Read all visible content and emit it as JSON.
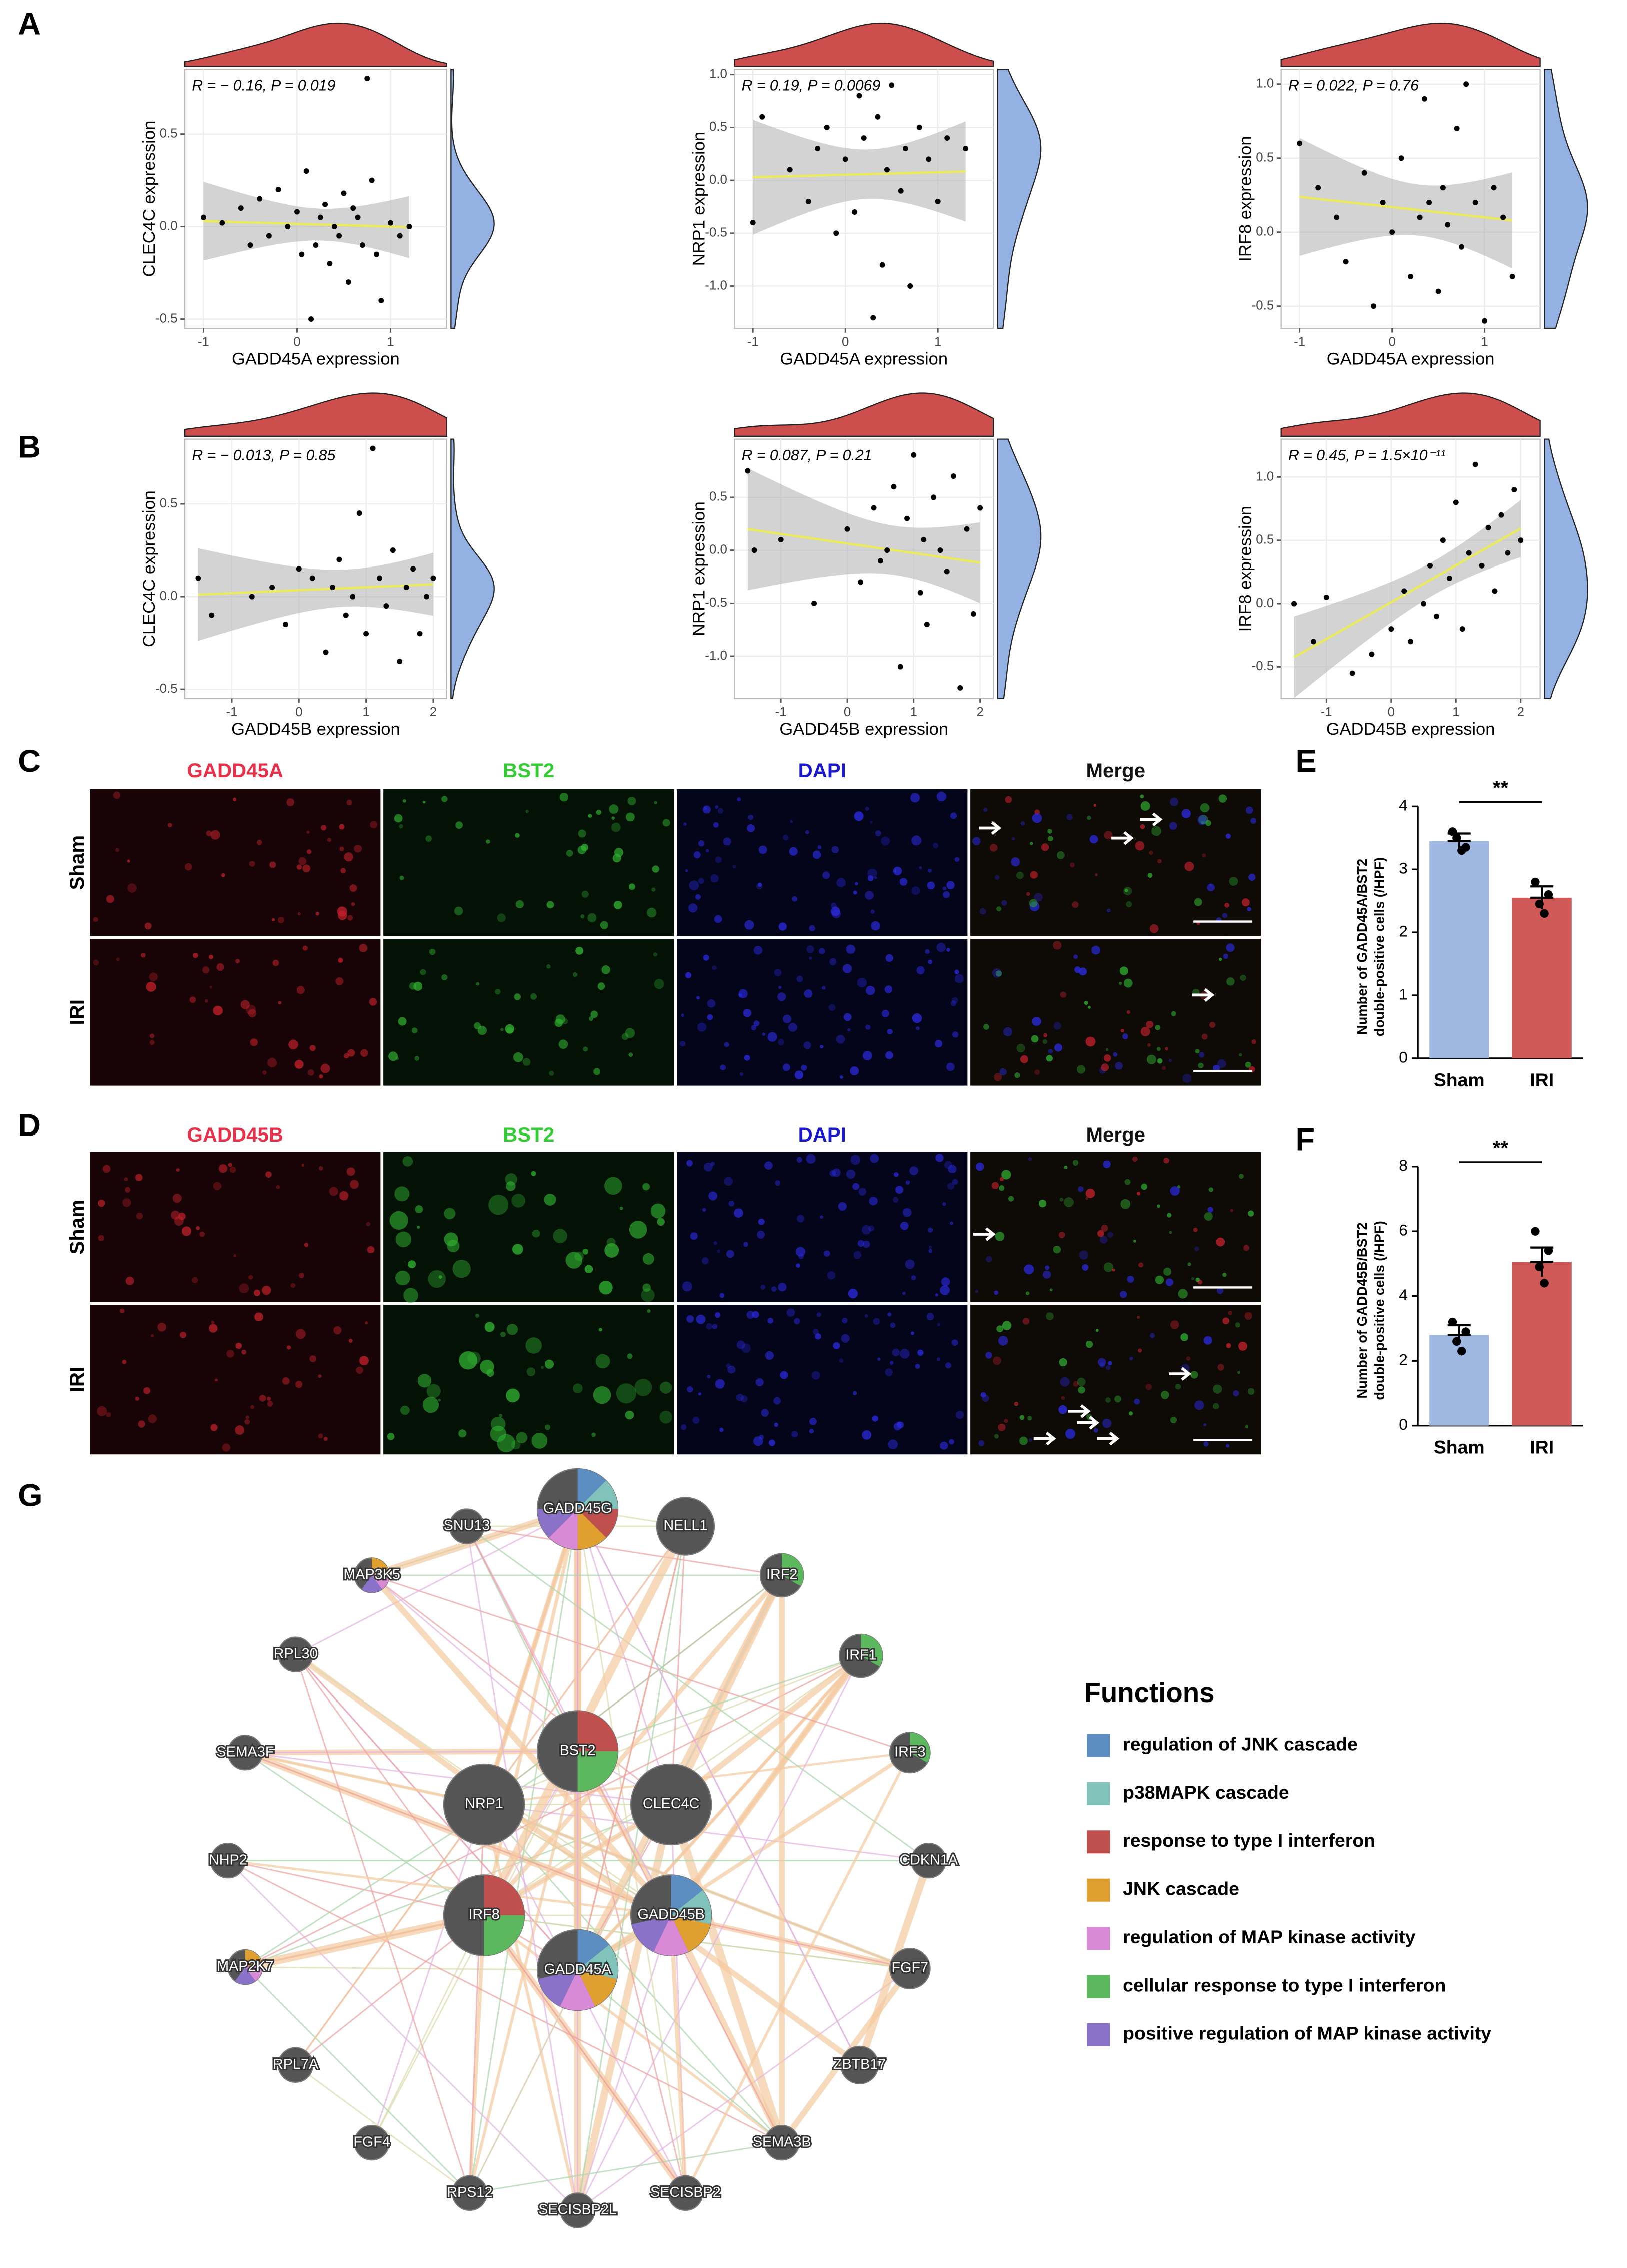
{
  "panel_labels": [
    "A",
    "B",
    "C",
    "D",
    "E",
    "F",
    "G"
  ],
  "chart_data": [
    {
      "type": "scatter",
      "annotation": "R = − 0.16, P = 0.019",
      "x_label": "GADD45A expression",
      "y_label": "CLEC4C expression",
      "color": "#000000",
      "top_density_color": "#cd4f4d",
      "right_density_color": "#94b1e3",
      "grid": true,
      "x": [
        -1.0,
        -0.8,
        -0.6,
        -0.4,
        -0.3,
        -0.2,
        -0.1,
        0,
        0.05,
        0.1,
        0.2,
        0.25,
        0.3,
        0.35,
        0.4,
        0.45,
        0.5,
        0.55,
        0.6,
        0.65,
        0.7,
        0.75,
        0.8,
        0.85,
        0.9,
        1.0,
        1.1,
        1.2,
        -0.5,
        0.15
      ],
      "y": [
        0.05,
        0.02,
        0.1,
        0.15,
        -0.05,
        0.2,
        0.0,
        0.08,
        -0.15,
        0.3,
        -0.1,
        0.05,
        0.12,
        -0.2,
        0.0,
        -0.05,
        0.18,
        -0.3,
        0.1,
        0.05,
        -0.1,
        0.8,
        0.25,
        -0.15,
        -0.4,
        0.02,
        -0.05,
        0.0,
        -0.1,
        -0.5
      ],
      "xlim": [
        -1.2,
        1.6
      ],
      "xticks": [
        -1,
        0,
        1
      ],
      "ylim": [
        -0.55,
        0.85
      ],
      "yticks": [
        -0.5,
        {
          "value": 0,
          "label": "0.0"
        },
        0.5
      ]
    },
    {
      "type": "scatter",
      "annotation": "R = 0.19, P = 0.0069",
      "x_label": "GADD45A expression",
      "y_label": "NRP1 expression",
      "color": "#000000",
      "top_density_color": "#cd4f4d",
      "right_density_color": "#94b1e3",
      "grid": true,
      "x": [
        -1.0,
        -0.9,
        -0.6,
        -0.4,
        -0.3,
        -0.2,
        -0.1,
        0,
        0.1,
        0.15,
        0.2,
        0.3,
        0.35,
        0.4,
        0.45,
        0.5,
        0.6,
        0.65,
        0.7,
        0.8,
        0.9,
        1.0,
        1.1,
        1.3
      ],
      "y": [
        -0.4,
        0.6,
        0.1,
        -0.2,
        0.3,
        0.5,
        -0.5,
        0.2,
        -0.3,
        0.8,
        0.4,
        -1.3,
        0.6,
        -0.8,
        0.1,
        0.9,
        -0.1,
        0.3,
        -1.0,
        0.5,
        0.2,
        -0.2,
        0.4,
        0.3
      ],
      "xlim": [
        -1.2,
        1.6
      ],
      "xticks": [
        -1,
        0,
        1
      ],
      "ylim": [
        -1.4,
        1.05
      ],
      "yticks": [
        {
          "value": -1,
          "label": "-1.0"
        },
        -0.5,
        {
          "value": 0,
          "label": "0.0"
        },
        0.5,
        {
          "value": 1,
          "label": "1.0"
        }
      ]
    },
    {
      "type": "scatter",
      "annotation": "R = 0.022, P = 0.76",
      "x_label": "GADD45A expression",
      "y_label": "IRF8 expression",
      "color": "#000000",
      "top_density_color": "#cd4f4d",
      "right_density_color": "#94b1e3",
      "grid": true,
      "x": [
        -1.0,
        -0.8,
        -0.6,
        -0.5,
        -0.3,
        -0.2,
        -0.1,
        0,
        0.1,
        0.2,
        0.3,
        0.35,
        0.4,
        0.5,
        0.55,
        0.6,
        0.7,
        0.75,
        0.8,
        0.9,
        1.0,
        1.1,
        1.2,
        1.3
      ],
      "y": [
        0.6,
        0.3,
        0.1,
        -0.2,
        0.4,
        -0.5,
        0.2,
        0.0,
        0.5,
        -0.3,
        0.1,
        0.9,
        0.2,
        -0.4,
        0.3,
        0.05,
        0.7,
        -0.1,
        1.0,
        0.2,
        -0.6,
        0.3,
        0.1,
        -0.3
      ],
      "xlim": [
        -1.2,
        1.6
      ],
      "xticks": [
        -1,
        0,
        1
      ],
      "ylim": [
        -0.65,
        1.1
      ],
      "yticks": [
        -0.5,
        {
          "value": 0,
          "label": "0.0"
        },
        0.5,
        {
          "value": 1,
          "label": "1.0"
        }
      ]
    },
    {
      "type": "scatter",
      "annotation": "R = − 0.013, P = 0.85",
      "x_label": "GADD45B expression",
      "y_label": "CLEC4C expression",
      "color": "#000000",
      "top_density_color": "#cd4f4d",
      "right_density_color": "#94b1e3",
      "grid": true,
      "x": [
        -1.5,
        -1.3,
        -0.7,
        -0.4,
        -0.2,
        0,
        0.2,
        0.4,
        0.5,
        0.6,
        0.7,
        0.8,
        0.9,
        1.0,
        1.1,
        1.2,
        1.3,
        1.4,
        1.5,
        1.6,
        1.7,
        1.8,
        1.9,
        2.0
      ],
      "y": [
        0.1,
        -0.1,
        0.0,
        0.05,
        -0.15,
        0.15,
        0.1,
        -0.3,
        0.05,
        0.2,
        -0.1,
        0.0,
        0.45,
        -0.2,
        0.8,
        0.1,
        -0.05,
        0.25,
        -0.35,
        0.05,
        0.15,
        -0.2,
        0.0,
        0.1
      ],
      "xlim": [
        -1.7,
        2.2
      ],
      "xticks": [
        -1,
        0,
        1,
        2
      ],
      "ylim": [
        -0.55,
        0.85
      ],
      "yticks": [
        -0.5,
        {
          "value": 0,
          "label": "0.0"
        },
        0.5
      ]
    },
    {
      "type": "scatter",
      "annotation": "R = 0.087, P = 0.21",
      "x_label": "GADD45B expression",
      "y_label": "NRP1 expression",
      "color": "#000000",
      "top_density_color": "#cd4f4d",
      "right_density_color": "#94b1e3",
      "grid": true,
      "x": [
        -1.5,
        -1.4,
        -1.0,
        -0.5,
        0,
        0.2,
        0.4,
        0.5,
        0.7,
        0.8,
        0.9,
        1.0,
        1.1,
        1.15,
        1.2,
        1.3,
        1.4,
        1.5,
        1.6,
        1.7,
        1.8,
        1.9,
        2.0,
        0.6
      ],
      "y": [
        0.75,
        0.0,
        0.1,
        -0.5,
        0.2,
        -0.3,
        0.4,
        -0.1,
        0.6,
        -1.1,
        0.3,
        0.9,
        -0.4,
        0.1,
        -0.7,
        0.5,
        0.0,
        -0.2,
        0.7,
        -1.3,
        0.2,
        -0.6,
        0.4,
        0.0
      ],
      "xlim": [
        -1.7,
        2.2
      ],
      "xticks": [
        -1,
        0,
        1,
        2
      ],
      "ylim": [
        -1.4,
        1.05
      ],
      "yticks": [
        {
          "value": -1,
          "label": "-1.0"
        },
        -0.5,
        {
          "value": 0,
          "label": "0.0"
        },
        0.5
      ]
    },
    {
      "type": "scatter",
      "annotation": "R = 0.45, P = 1.5×10⁻¹¹",
      "x_label": "GADD45B expression",
      "y_label": "IRF8 expression",
      "color": "#000000",
      "top_density_color": "#cd4f4d",
      "right_density_color": "#94b1e3",
      "grid": true,
      "x": [
        -1.5,
        -1.2,
        -1.0,
        -0.6,
        -0.3,
        0,
        0.2,
        0.3,
        0.5,
        0.6,
        0.7,
        0.8,
        0.9,
        1.0,
        1.1,
        1.2,
        1.3,
        1.4,
        1.5,
        1.6,
        1.7,
        1.8,
        1.9,
        2.0
      ],
      "y": [
        0.0,
        -0.3,
        0.05,
        -0.55,
        -0.4,
        -0.2,
        0.1,
        -0.3,
        0.0,
        0.3,
        -0.1,
        0.5,
        0.2,
        0.8,
        -0.2,
        0.4,
        1.1,
        0.3,
        0.6,
        0.1,
        0.7,
        0.4,
        0.9,
        0.5
      ],
      "xlim": [
        -1.7,
        2.3
      ],
      "xticks": [
        -1,
        0,
        1,
        2
      ],
      "ylim": [
        -0.75,
        1.3
      ],
      "yticks": [
        -0.5,
        {
          "value": 0,
          "label": "0.0"
        },
        0.5,
        {
          "value": 1,
          "label": "1.0"
        }
      ]
    },
    {
      "type": "bar",
      "y_label": [
        "Number of GADD45A/BST2",
        "double-positive cells (/HPF)"
      ],
      "categories": [
        "Sham",
        "IRI"
      ],
      "values": [
        3.45,
        2.55
      ],
      "errors": [
        0.12,
        0.18
      ],
      "points": [
        [
          3.6,
          3.35,
          3.5,
          3.3
        ],
        [
          2.8,
          2.6,
          2.45,
          2.3
        ]
      ],
      "colors": [
        "#9fb8e2",
        "#cf5956"
      ],
      "significance": "**",
      "ylim": [
        0,
        4
      ],
      "yticks": [
        0,
        1,
        2,
        3,
        4
      ]
    },
    {
      "type": "bar",
      "y_label": [
        "Number of GADD45B/BST2",
        "double-positive cells (/HPF)"
      ],
      "categories": [
        "Sham",
        "IRI"
      ],
      "values": [
        2.8,
        5.05
      ],
      "errors": [
        0.3,
        0.45
      ],
      "points": [
        [
          3.2,
          2.9,
          2.6,
          2.3
        ],
        [
          6.0,
          5.4,
          4.9,
          4.4
        ]
      ],
      "colors": [
        "#9fb8e2",
        "#cf5956"
      ],
      "significance": "**",
      "ylim": [
        0,
        8
      ],
      "yticks": [
        0,
        2,
        4,
        6,
        8
      ]
    }
  ],
  "microscopy": [
    {
      "channels": [
        "GADD45A",
        "BST2",
        "DAPI",
        "Merge"
      ],
      "channel_colors": [
        "#e8304a",
        "#33cc33",
        "#1a1acc",
        "#111111"
      ],
      "rows": [
        "Sham",
        "IRI"
      ]
    },
    {
      "channels": [
        "GADD45B",
        "BST2",
        "DAPI",
        "Merge"
      ],
      "channel_colors": [
        "#e8304a",
        "#33cc33",
        "#1a1acc",
        "#111111"
      ],
      "rows": [
        "Sham",
        "IRI"
      ]
    }
  ],
  "network": {
    "nodes": [
      "GADD45G",
      "SNU13",
      "NELL1",
      "MAP3K5",
      "IRF2",
      "RPL30",
      "IRF1",
      "SEMA3F",
      "IRF3",
      "BST2",
      "NRP1",
      "CLEC4C",
      "NHP2",
      "CDKN1A",
      "IRF8",
      "GADD45B",
      "GADD45A",
      "MAP2K7",
      "FGF7",
      "RPL7A",
      "ZBTB17",
      "FGF4",
      "SEMA3B",
      "RPS12",
      "SECISBP2L",
      "SECISBP2"
    ],
    "legend_title": "Functions",
    "functions": [
      {
        "name": "regulation of JNK cascade",
        "color": "#5b8dc0"
      },
      {
        "name": "p38MAPK cascade",
        "color": "#7fc3bb"
      },
      {
        "name": "response to type I interferon",
        "color": "#c0504d"
      },
      {
        "name": "JNK cascade",
        "color": "#e0a030"
      },
      {
        "name": "regulation of MAP kinase activity",
        "color": "#d98ad6"
      },
      {
        "name": "cellular response to type I interferon",
        "color": "#5cb85c"
      },
      {
        "name": "positive regulation of MAP kinase activity",
        "color": "#8a72c8"
      }
    ]
  }
}
